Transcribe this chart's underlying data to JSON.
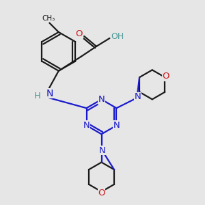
{
  "bg_color": "#e6e6e6",
  "bond_color": "#1a1a1a",
  "N_color": "#1a1acc",
  "O_color": "#cc1a1a",
  "H_color": "#4d9999",
  "line_width": 1.6,
  "figsize": [
    3.0,
    3.0
  ],
  "dpi": 100,
  "xlim": [
    0,
    10
  ],
  "ylim": [
    0,
    10
  ]
}
